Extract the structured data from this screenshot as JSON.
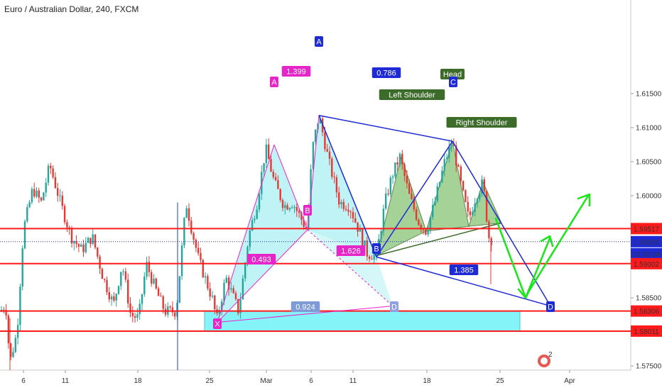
{
  "title": "Euro / Australian Dollar, 240, FXCM",
  "colors": {
    "up": "#26a69a",
    "down": "#e53935",
    "level": "#ff1b1b",
    "harmonic_blue": "#1e2ad6",
    "harmonic_fill": "#b9f2f4",
    "harmonic_pink": "#ee22cc",
    "hs_fill": "#8fc77d",
    "hs_label_bg": "#3d6b2a",
    "zone_fill": "#6ff3f7",
    "arrow_green": "#19e619",
    "ratio_blue_bg": "#1e2ad6",
    "ratio_pink_bg": "#e726c9"
  },
  "chart_data": {
    "type": "candlestick",
    "instrument": "Euro / Australian Dollar",
    "timeframe": "240",
    "source": "FXCM",
    "ylim": [
      1.5741,
      1.6186
    ],
    "xticks": [
      "6",
      "11",
      "18",
      "25",
      "Mar",
      "6",
      "11",
      "18",
      "25",
      "Apr"
    ],
    "yticks": [
      "1.61500",
      "1.61000",
      "1.60500",
      "1.60000",
      "1.58500",
      "1.57500"
    ],
    "price_tags": [
      {
        "text": "1.59517",
        "kind": "level"
      },
      {
        "text": "1.59325",
        "kind": "last"
      },
      {
        "text": "01:55:34",
        "kind": "countdown"
      },
      {
        "text": "1.59002",
        "kind": "level"
      },
      {
        "text": "1.58306",
        "kind": "level"
      },
      {
        "text": "1.58011",
        "kind": "level"
      }
    ],
    "horizontal_levels": [
      1.59517,
      1.59002,
      1.58306,
      1.58011
    ],
    "last_price": 1.59325,
    "harmonic_pattern_1": {
      "points": {
        "X": 1.5814,
        "A": 1.6075,
        "B": 1.595,
        "C": 1.6118,
        "D": 1.5838
      },
      "ratios": [
        "1.399",
        "0.493",
        "1.626",
        "0.924"
      ]
    },
    "harmonic_pattern_2": {
      "points": {
        "A": 1.6118,
        "B": 1.591,
        "C": 1.608,
        "D": 1.5838
      },
      "ratios": [
        "0.786",
        "1.385"
      ]
    },
    "head_and_shoulders": {
      "labels": [
        "Left Shoulder",
        "Head",
        "Right Shoulder"
      ],
      "left_shoulder": 1.6057,
      "head": 1.608,
      "right_shoulder": 1.602,
      "neckline": 1.595
    },
    "annotations": [
      "A",
      "B",
      "X",
      "D",
      "A",
      "B",
      "C",
      "D"
    ],
    "watermark": "2"
  }
}
